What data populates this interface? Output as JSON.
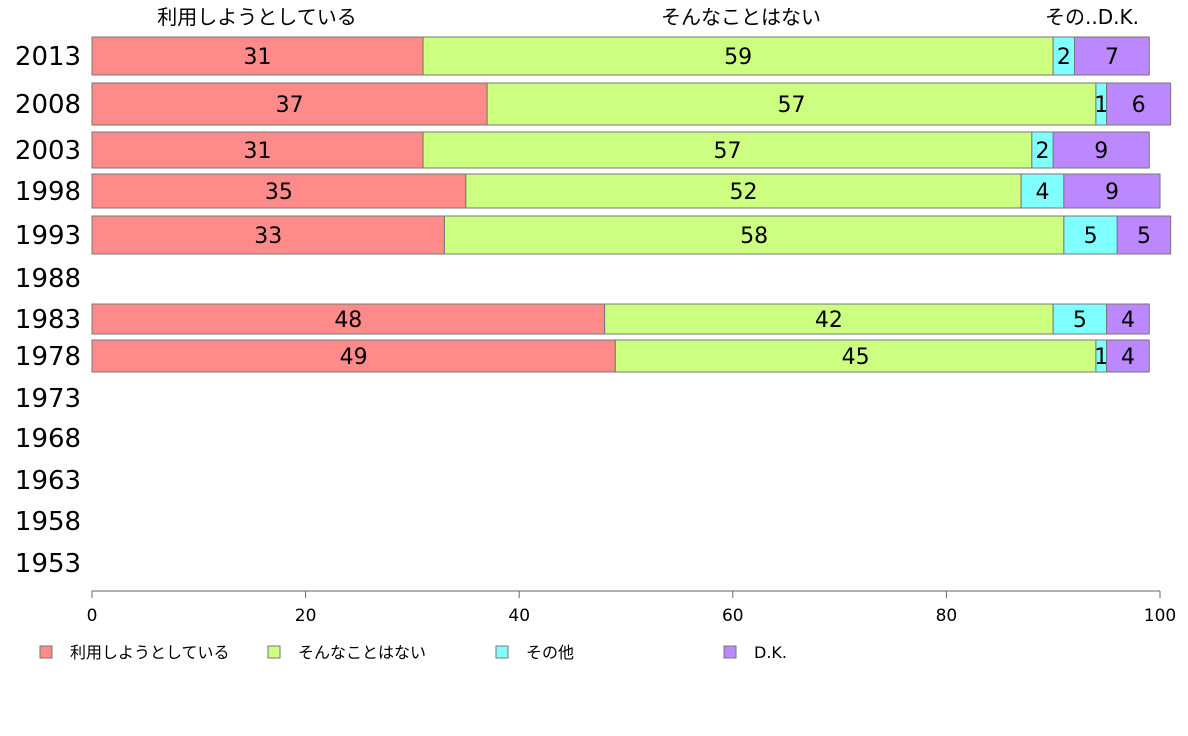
{
  "chart_data": {
    "type": "bar",
    "orientation": "horizontal",
    "stacked": true,
    "categories": [
      "2013",
      "2008",
      "2003",
      "1998",
      "1993",
      "1988",
      "1983",
      "1978",
      "1973",
      "1968",
      "1963",
      "1958",
      "1953"
    ],
    "series": [
      {
        "name": "利用しようとしている",
        "color": "#ff8a8a",
        "values": [
          31,
          37,
          31,
          35,
          33,
          null,
          48,
          49,
          null,
          null,
          null,
          null,
          null
        ]
      },
      {
        "name": "そんなことはない",
        "color": "#ccff80",
        "values": [
          59,
          57,
          57,
          52,
          58,
          null,
          42,
          45,
          null,
          null,
          null,
          null,
          null
        ]
      },
      {
        "name": "その他",
        "color": "#80ffff",
        "values": [
          2,
          1,
          2,
          4,
          5,
          null,
          5,
          1,
          null,
          null,
          null,
          null,
          null
        ]
      },
      {
        "name": "D.K.",
        "color": "#bb88ff",
        "values": [
          7,
          6,
          9,
          9,
          5,
          null,
          4,
          4,
          null,
          null,
          null,
          null,
          null
        ]
      }
    ],
    "top_labels": [
      "利用しようとしている",
      "そんなことはない",
      "その..D.K."
    ],
    "xlim": [
      0,
      100
    ],
    "xticks": [
      "0",
      "20",
      "40",
      "60",
      "80",
      "100"
    ],
    "legend_position": "bottom",
    "grid": false
  }
}
